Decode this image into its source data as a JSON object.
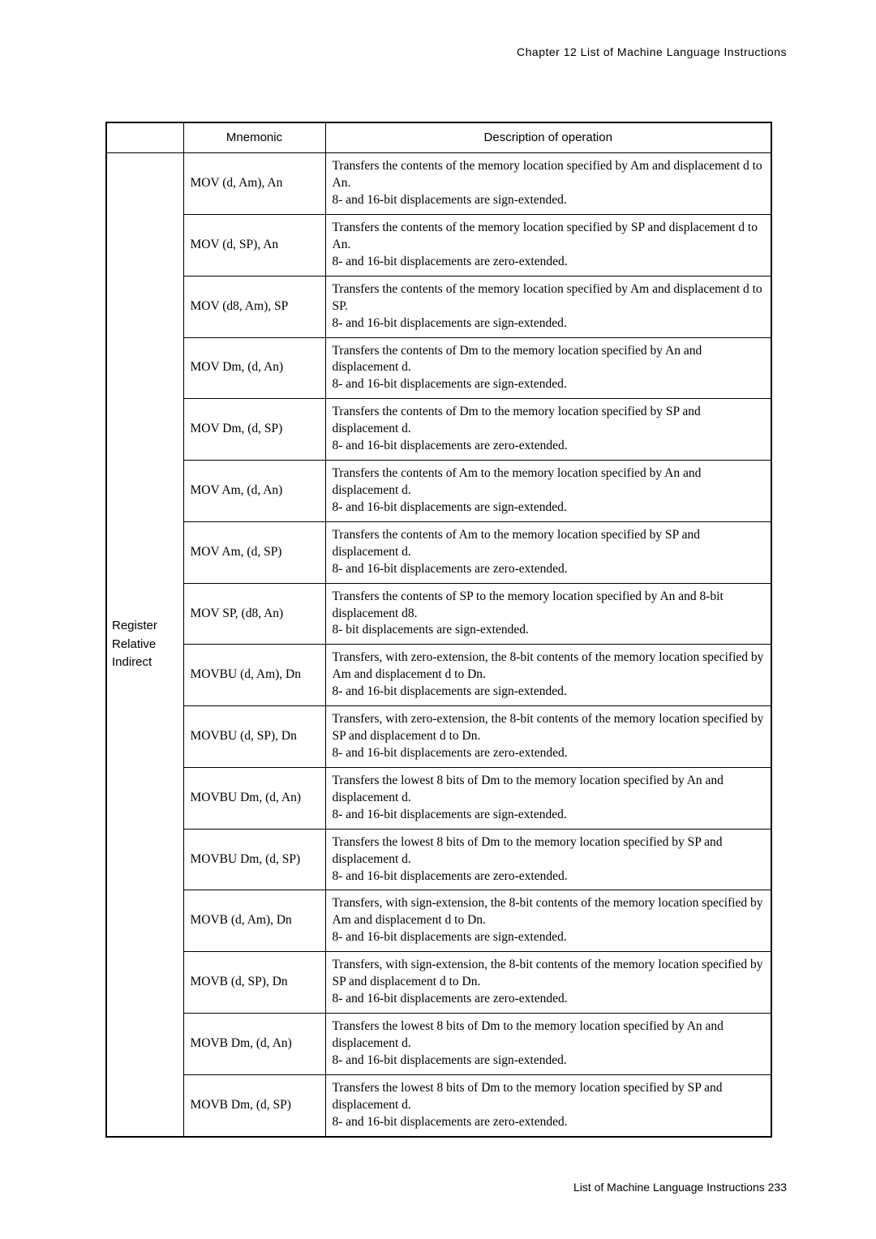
{
  "header": "Chapter 12   List of Machine Language Instructions",
  "footer": "List of Machine Language Instructions  233",
  "columns": {
    "mnemonic": "Mnemonic",
    "description": "Description of operation"
  },
  "category": "Register\nRelative\nIndirect",
  "rows": [
    {
      "mnem": "MOV (d, Am), An",
      "desc": "Transfers the contents of the memory location specified by Am and displacement d to An.\n8- and 16-bit displacements are sign-extended."
    },
    {
      "mnem": "MOV (d, SP), An",
      "desc": "Transfers the contents of the memory location specified by SP and displacement d to An.\n8- and 16-bit displacements are zero-extended."
    },
    {
      "mnem": "MOV (d8, Am), SP",
      "desc": "Transfers the contents of the memory location specified by Am and displacement d to SP.\n8- and 16-bit displacements are sign-extended."
    },
    {
      "mnem": "MOV Dm, (d, An)",
      "desc": "Transfers the contents of Dm to the memory location specified by An and displacement d.\n8- and 16-bit displacements are sign-extended."
    },
    {
      "mnem": "MOV Dm, (d, SP)",
      "desc": "Transfers the contents of Dm to the memory location specified by SP and displacement d.\n8- and 16-bit displacements are zero-extended."
    },
    {
      "mnem": "MOV Am, (d, An)",
      "desc": "Transfers the contents of Am to the memory location specified by An and displacement d.\n8- and 16-bit displacements are sign-extended."
    },
    {
      "mnem": "MOV Am, (d, SP)",
      "desc": "Transfers the contents of Am to the memory location specified by SP and displacement d.\n8- and 16-bit displacements are zero-extended."
    },
    {
      "mnem": "MOV SP, (d8, An)",
      "desc": "Transfers the contents of SP to the memory location specified by An and 8-bit displacement d8.\n8- bit displacements are sign-extended."
    },
    {
      "mnem": "MOVBU (d, Am), Dn",
      "desc": "Transfers, with zero-extension, the 8-bit contents of the memory location specified by Am and displacement d to Dn.\n8- and 16-bit displacements are sign-extended."
    },
    {
      "mnem": "MOVBU (d, SP), Dn",
      "desc": "Transfers, with zero-extension, the 8-bit contents of the memory location specified by SP and displacement d to Dn.\n8- and 16-bit displacements are zero-extended."
    },
    {
      "mnem": "MOVBU Dm, (d, An)",
      "desc": "Transfers the lowest 8 bits of Dm to the memory location specified by An and displacement d.\n8- and 16-bit displacements are sign-extended."
    },
    {
      "mnem": "MOVBU Dm, (d, SP)",
      "desc": "Transfers the lowest 8 bits of Dm to the memory location specified by SP and displacement d.\n8- and 16-bit displacements are zero-extended."
    },
    {
      "mnem": "MOVB (d, Am), Dn",
      "desc": "Transfers, with sign-extension, the 8-bit contents of the memory location specified by Am and displacement d to Dn.\n8- and 16-bit displacements are sign-extended."
    },
    {
      "mnem": "MOVB (d, SP), Dn",
      "desc": "Transfers, with sign-extension, the 8-bit contents of the memory location specified by SP and displacement d to Dn.\n8- and 16-bit displacements are zero-extended."
    },
    {
      "mnem": "MOVB Dm, (d, An)",
      "desc": "Transfers the lowest 8 bits of Dm to the memory location specified by An and displacement d.\n8- and 16-bit displacements are sign-extended."
    },
    {
      "mnem": "MOVB Dm, (d, SP)",
      "desc": "Transfers the lowest 8 bits of Dm to the memory location specified by SP and displacement d.\n8- and 16-bit displacements are zero-extended."
    }
  ]
}
